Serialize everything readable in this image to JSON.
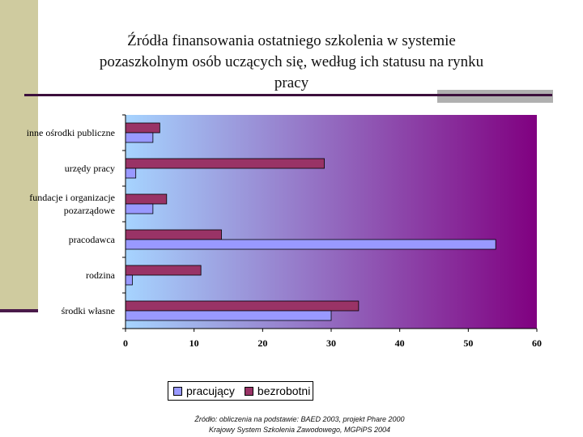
{
  "title_lines": [
    "Źródła finansowania ostatniego szkolenia w systemie",
    "pozaszkolnym osób uczących się, według ich statusu na rynku",
    "pracy"
  ],
  "source_lines": [
    "Źródło: obliczenia na podstawie: BAED 2003, projekt Phare 2000",
    "Krajowy System Szkolenia Zawodowego, MGPiPS 2004"
  ],
  "colors": {
    "pracujacy": "#9999ff",
    "bezrobotni": "#993366",
    "plot_gradient": [
      "#a6d4ff",
      "#800080"
    ]
  },
  "chart_data": {
    "type": "bar",
    "orientation": "horizontal",
    "categories": [
      "inne ośrodki publiczne",
      "urzędy pracy",
      "fundacje i organizacje pozarządowe",
      "pracodawca",
      "rodzina",
      "środki własne"
    ],
    "category_label_lines": [
      [
        "inne ośrodki publiczne"
      ],
      [
        "urzędy pracy"
      ],
      [
        "fundacje i organizacje",
        "pozarządowe"
      ],
      [
        "pracodawca"
      ],
      [
        "rodzina"
      ],
      [
        "środki własne"
      ]
    ],
    "series": [
      {
        "name": "pracujący",
        "values": [
          4,
          1.5,
          4,
          54,
          1,
          30
        ]
      },
      {
        "name": "bezrobotni",
        "values": [
          5,
          29,
          6,
          14,
          11,
          34
        ]
      }
    ],
    "xlim": [
      0,
      60
    ],
    "xticks": [
      0,
      10,
      20,
      30,
      40,
      50,
      60
    ],
    "legend_position": "bottom",
    "grid": false
  }
}
